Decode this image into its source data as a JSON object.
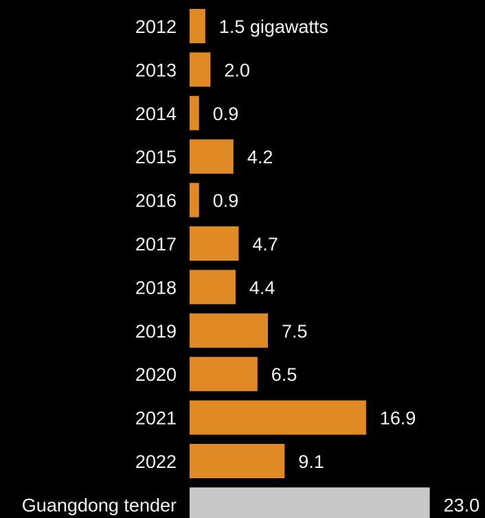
{
  "chart_data": {
    "type": "bar",
    "orientation": "horizontal",
    "categories": [
      "2012",
      "2013",
      "2014",
      "2015",
      "2016",
      "2017",
      "2018",
      "2019",
      "2020",
      "2021",
      "2022",
      "Guangdong tender"
    ],
    "values": [
      1.5,
      2.0,
      0.9,
      4.2,
      0.9,
      4.7,
      4.4,
      7.5,
      6.5,
      16.9,
      9.1,
      23.0
    ],
    "value_labels": [
      "1.5 gigawatts",
      "2.0",
      "0.9",
      "4.2",
      "0.9",
      "4.7",
      "4.4",
      "7.5",
      "6.5",
      "16.9",
      "9.1",
      "23.0"
    ],
    "unit": "gigawatts",
    "grid": false,
    "legend": "none",
    "colors": {
      "background": "#000000",
      "bar": "#E08A25",
      "highlight_bar": "#C8C8C8",
      "text": "#F2F2F2"
    },
    "highlight_category": "Guangdong tender"
  }
}
